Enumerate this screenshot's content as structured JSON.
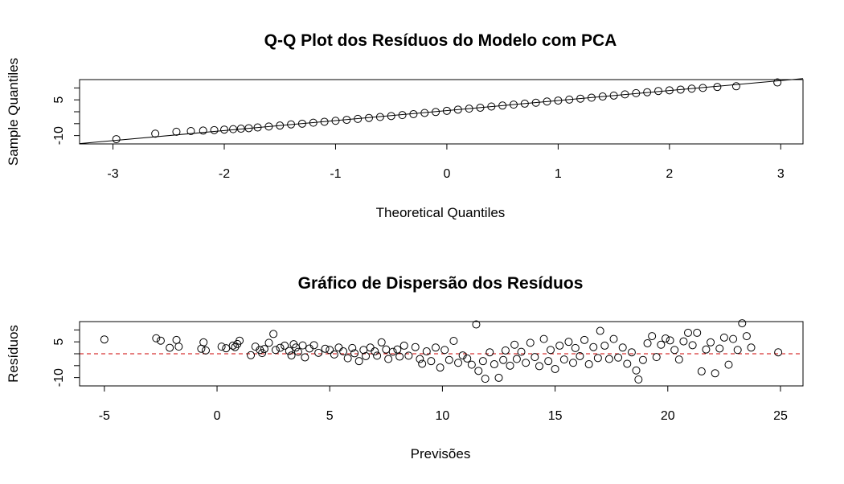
{
  "chart_data": [
    {
      "type": "scatter",
      "title": "Q-Q Plot dos Resíduos do Modelo com PCA",
      "xlabel": "Theoretical Quantiles",
      "ylabel": "Sample Quantiles",
      "xlim": [
        -3.3,
        3.2
      ],
      "ylim": [
        -13.5,
        13.5
      ],
      "x_ticks": [
        -3,
        -2,
        -1,
        0,
        1,
        2,
        3
      ],
      "y_ticks": [
        -10,
        5
      ],
      "y_tick_labels_shown": [
        "-10",
        "5"
      ],
      "grid": false,
      "marker": "open-circle",
      "reference_line": {
        "intercept": 0.5,
        "slope": 4.2
      },
      "points": [
        [
          -2.97,
          -11.5
        ],
        [
          -2.62,
          -9.2
        ],
        [
          -2.43,
          -8.4
        ],
        [
          -2.3,
          -8.1
        ],
        [
          -2.19,
          -7.9
        ],
        [
          -2.09,
          -7.7
        ],
        [
          -2.0,
          -7.5
        ],
        [
          -1.92,
          -7.3
        ],
        [
          -1.85,
          -7.1
        ],
        [
          -1.78,
          -6.9
        ],
        [
          -1.7,
          -6.6
        ],
        [
          -1.6,
          -6.2
        ],
        [
          -1.5,
          -5.8
        ],
        [
          -1.4,
          -5.3
        ],
        [
          -1.3,
          -5.0
        ],
        [
          -1.2,
          -4.6
        ],
        [
          -1.1,
          -4.2
        ],
        [
          -1.0,
          -3.8
        ],
        [
          -0.9,
          -3.4
        ],
        [
          -0.8,
          -3.0
        ],
        [
          -0.7,
          -2.6
        ],
        [
          -0.6,
          -2.2
        ],
        [
          -0.5,
          -1.8
        ],
        [
          -0.4,
          -1.4
        ],
        [
          -0.3,
          -1.0
        ],
        [
          -0.2,
          -0.5
        ],
        [
          -0.1,
          -0.1
        ],
        [
          0.0,
          0.4
        ],
        [
          0.1,
          0.9
        ],
        [
          0.2,
          1.3
        ],
        [
          0.3,
          1.7
        ],
        [
          0.4,
          2.2
        ],
        [
          0.5,
          2.6
        ],
        [
          0.6,
          3.0
        ],
        [
          0.7,
          3.4
        ],
        [
          0.8,
          3.8
        ],
        [
          0.9,
          4.3
        ],
        [
          1.0,
          4.7
        ],
        [
          1.1,
          5.1
        ],
        [
          1.2,
          5.5
        ],
        [
          1.3,
          5.9
        ],
        [
          1.4,
          6.4
        ],
        [
          1.5,
          6.8
        ],
        [
          1.6,
          7.3
        ],
        [
          1.7,
          7.8
        ],
        [
          1.8,
          8.2
        ],
        [
          1.9,
          8.7
        ],
        [
          2.0,
          9.0
        ],
        [
          2.1,
          9.3
        ],
        [
          2.2,
          9.7
        ],
        [
          2.3,
          10.0
        ],
        [
          2.43,
          10.4
        ],
        [
          2.6,
          10.7
        ],
        [
          2.97,
          12.3
        ]
      ]
    },
    {
      "type": "scatter",
      "title": "Gráfico de Dispersão dos Resíduos",
      "xlabel": "Previsões",
      "ylabel": "Resíduos",
      "xlim": [
        -6.1,
        26.0
      ],
      "ylim": [
        -13.5,
        13.5
      ],
      "x_ticks": [
        -5,
        0,
        5,
        10,
        15,
        20,
        25
      ],
      "y_ticks": [
        -10,
        5
      ],
      "y_tick_labels_shown": [
        "-10",
        "5"
      ],
      "grid": false,
      "marker": "open-circle",
      "reference_line": {
        "y": 0,
        "color": "#cc0000",
        "style": "dashed"
      },
      "points": [
        [
          -5.0,
          6.0
        ],
        [
          -2.7,
          6.5
        ],
        [
          -2.5,
          5.5
        ],
        [
          -2.1,
          2.5
        ],
        [
          -1.8,
          5.8
        ],
        [
          -1.7,
          3.0
        ],
        [
          -0.6,
          4.8
        ],
        [
          -0.7,
          2.1
        ],
        [
          -0.5,
          1.4
        ],
        [
          0.2,
          3.0
        ],
        [
          0.4,
          2.3
        ],
        [
          0.7,
          3.4
        ],
        [
          0.9,
          4.1
        ],
        [
          0.8,
          2.8
        ],
        [
          1.0,
          5.5
        ],
        [
          1.5,
          -0.6
        ],
        [
          1.7,
          3.0
        ],
        [
          1.9,
          1.6
        ],
        [
          2.0,
          0.3
        ],
        [
          2.1,
          2.0
        ],
        [
          2.3,
          4.6
        ],
        [
          2.5,
          8.3
        ],
        [
          2.6,
          1.6
        ],
        [
          2.8,
          2.5
        ],
        [
          3.0,
          3.4
        ],
        [
          3.2,
          1.2
        ],
        [
          3.3,
          -0.7
        ],
        [
          3.4,
          4.0
        ],
        [
          3.5,
          2.6
        ],
        [
          3.6,
          0.8
        ],
        [
          3.8,
          3.5
        ],
        [
          3.9,
          -1.5
        ],
        [
          4.1,
          2.2
        ],
        [
          4.3,
          3.6
        ],
        [
          4.5,
          0.4
        ],
        [
          4.8,
          2.1
        ],
        [
          5.0,
          1.6
        ],
        [
          5.2,
          -0.3
        ],
        [
          5.4,
          2.6
        ],
        [
          5.6,
          1.0
        ],
        [
          5.8,
          -1.9
        ],
        [
          6.0,
          2.4
        ],
        [
          6.1,
          0.2
        ],
        [
          6.3,
          -3.1
        ],
        [
          6.5,
          1.6
        ],
        [
          6.6,
          -1.0
        ],
        [
          6.8,
          2.6
        ],
        [
          7.0,
          1.0
        ],
        [
          7.1,
          -0.8
        ],
        [
          7.3,
          4.8
        ],
        [
          7.5,
          1.8
        ],
        [
          7.6,
          -2.2
        ],
        [
          7.8,
          0.8
        ],
        [
          8.0,
          1.8
        ],
        [
          8.1,
          -1.2
        ],
        [
          8.3,
          3.4
        ],
        [
          8.5,
          -0.8
        ],
        [
          8.8,
          2.8
        ],
        [
          9.0,
          -2.2
        ],
        [
          9.1,
          -4.2
        ],
        [
          9.3,
          1.0
        ],
        [
          9.5,
          -3.1
        ],
        [
          9.7,
          2.6
        ],
        [
          9.9,
          -5.8
        ],
        [
          10.1,
          1.6
        ],
        [
          10.3,
          -2.6
        ],
        [
          10.5,
          5.4
        ],
        [
          10.7,
          -3.8
        ],
        [
          10.9,
          -0.7
        ],
        [
          11.1,
          -2.0
        ],
        [
          11.3,
          -4.6
        ],
        [
          11.5,
          12.3
        ],
        [
          11.6,
          -7.2
        ],
        [
          11.8,
          -3.1
        ],
        [
          11.9,
          -10.5
        ],
        [
          12.1,
          0.6
        ],
        [
          12.3,
          -4.4
        ],
        [
          12.5,
          -10.1
        ],
        [
          12.7,
          -2.6
        ],
        [
          12.8,
          1.4
        ],
        [
          13.0,
          -5.0
        ],
        [
          13.2,
          3.8
        ],
        [
          13.3,
          -2.2
        ],
        [
          13.5,
          0.8
        ],
        [
          13.7,
          -3.8
        ],
        [
          13.9,
          4.6
        ],
        [
          14.1,
          -1.4
        ],
        [
          14.3,
          -5.2
        ],
        [
          14.5,
          6.2
        ],
        [
          14.7,
          -3.1
        ],
        [
          14.8,
          1.6
        ],
        [
          15.0,
          -6.4
        ],
        [
          15.2,
          3.4
        ],
        [
          15.4,
          -2.4
        ],
        [
          15.6,
          5.0
        ],
        [
          15.8,
          -3.8
        ],
        [
          15.9,
          2.4
        ],
        [
          16.1,
          -1.0
        ],
        [
          16.3,
          5.8
        ],
        [
          16.5,
          -4.4
        ],
        [
          16.7,
          2.8
        ],
        [
          16.9,
          -1.8
        ],
        [
          17.0,
          9.6
        ],
        [
          17.2,
          3.4
        ],
        [
          17.4,
          -2.2
        ],
        [
          17.6,
          6.2
        ],
        [
          17.8,
          -1.6
        ],
        [
          18.0,
          2.6
        ],
        [
          18.2,
          -4.2
        ],
        [
          18.4,
          0.6
        ],
        [
          18.6,
          -7.0
        ],
        [
          18.7,
          -10.8
        ],
        [
          18.9,
          -2.6
        ],
        [
          19.1,
          4.4
        ],
        [
          19.3,
          7.4
        ],
        [
          19.5,
          -1.4
        ],
        [
          19.7,
          3.8
        ],
        [
          19.9,
          6.4
        ],
        [
          20.1,
          5.6
        ],
        [
          20.3,
          1.6
        ],
        [
          20.5,
          -2.4
        ],
        [
          20.7,
          5.2
        ],
        [
          20.9,
          8.8
        ],
        [
          21.1,
          3.6
        ],
        [
          21.3,
          8.8
        ],
        [
          21.5,
          -7.4
        ],
        [
          21.7,
          1.8
        ],
        [
          21.9,
          4.8
        ],
        [
          22.1,
          -8.2
        ],
        [
          22.3,
          2.2
        ],
        [
          22.5,
          6.8
        ],
        [
          22.7,
          -4.6
        ],
        [
          22.9,
          6.2
        ],
        [
          23.1,
          1.6
        ],
        [
          23.3,
          12.8
        ],
        [
          23.5,
          7.4
        ],
        [
          23.7,
          2.6
        ],
        [
          24.9,
          0.6
        ]
      ]
    }
  ]
}
